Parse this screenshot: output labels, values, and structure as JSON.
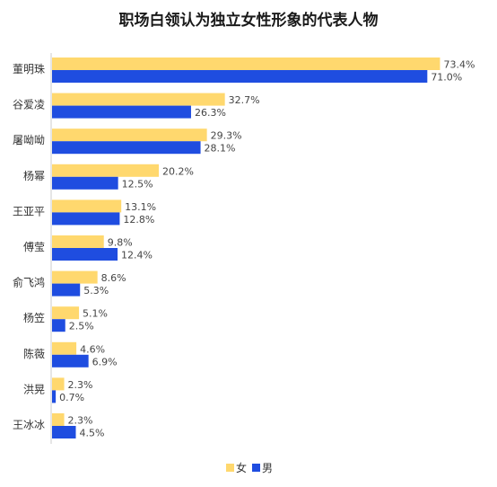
{
  "chart_data": {
    "type": "bar",
    "orientation": "horizontal",
    "title": "职场白领认为独立女性形象的代表人物",
    "categories": [
      "董明珠",
      "谷爱凌",
      "屠呦呦",
      "杨幂",
      "王亚平",
      "傅莹",
      "俞飞鸿",
      "杨笠",
      "陈薇",
      "洪晃",
      "王冰冰"
    ],
    "series": [
      {
        "name": "女",
        "color": "#FFD86E",
        "values": [
          73.4,
          32.7,
          29.3,
          20.2,
          13.1,
          9.8,
          8.6,
          5.1,
          4.6,
          2.3,
          2.3
        ]
      },
      {
        "name": "男",
        "color": "#1F4DE0",
        "values": [
          71.0,
          26.3,
          28.1,
          12.5,
          12.8,
          12.4,
          5.3,
          2.5,
          6.9,
          0.7,
          4.5
        ]
      }
    ],
    "value_suffix": "%",
    "xlim": [
      0,
      80
    ],
    "grid": false,
    "legend_position": "bottom-center"
  }
}
